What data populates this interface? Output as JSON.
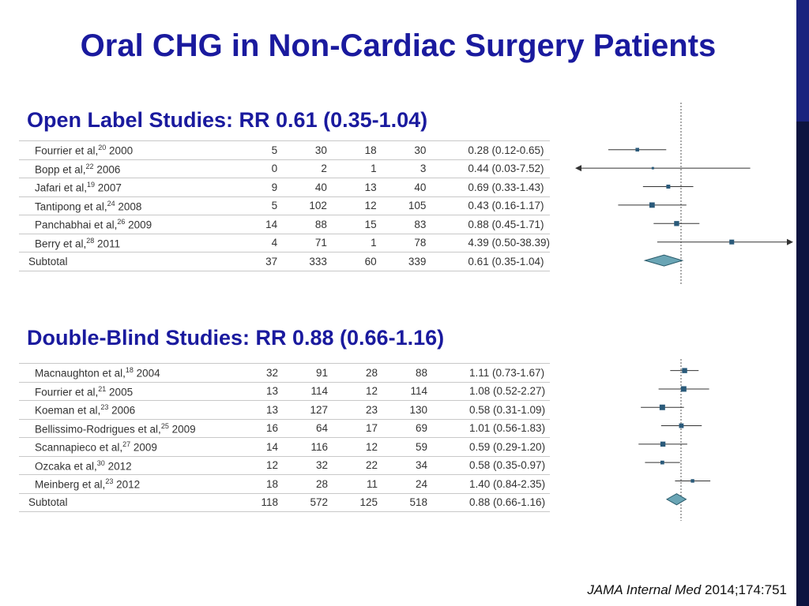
{
  "slide": {
    "title": "Oral CHG in Non-Cardiac Surgery Patients",
    "accent_color": "#1a1a9e"
  },
  "citation": {
    "journal": "JAMA Internal Med",
    "volume": "2014;174:751"
  },
  "chart_data": [
    {
      "type": "table",
      "title": "Open Label Studies: RR 0.61 (0.35-1.04)",
      "reference_line": 1,
      "rows": [
        {
          "study": "Fourrier et al,",
          "ref": "20",
          "year": "2000",
          "events_a": 5,
          "total_a": 30,
          "events_b": 18,
          "total_b": 30,
          "rr_text": "0.28 (0.12-0.65)",
          "rr": 0.28,
          "ci": [
            0.12,
            0.65
          ]
        },
        {
          "study": "Bopp et al,",
          "ref": "22",
          "year": "2006",
          "events_a": 0,
          "total_a": 2,
          "events_b": 1,
          "total_b": 3,
          "rr_text": "0.44 (0.03-7.52)",
          "rr": 0.44,
          "ci": [
            0.03,
            7.52
          ]
        },
        {
          "study": "Jafari et al,",
          "ref": "19",
          "year": "2007",
          "events_a": 9,
          "total_a": 40,
          "events_b": 13,
          "total_b": 40,
          "rr_text": "0.69 (0.33-1.43)",
          "rr": 0.69,
          "ci": [
            0.33,
            1.43
          ]
        },
        {
          "study": "Tantipong et al,",
          "ref": "24",
          "year": "2008",
          "events_a": 5,
          "total_a": 102,
          "events_b": 12,
          "total_b": 105,
          "rr_text": "0.43 (0.16-1.17)",
          "rr": 0.43,
          "ci": [
            0.16,
            1.17
          ]
        },
        {
          "study": "Panchabhai et al,",
          "ref": "26",
          "year": "2009",
          "events_a": 14,
          "total_a": 88,
          "events_b": 15,
          "total_b": 83,
          "rr_text": "0.88 (0.45-1.71)",
          "rr": 0.88,
          "ci": [
            0.45,
            1.71
          ]
        },
        {
          "study": "Berry et al,",
          "ref": "28",
          "year": "2011",
          "events_a": 4,
          "total_a": 71,
          "events_b": 1,
          "total_b": 78,
          "rr_text": "4.39 (0.50-38.39)",
          "rr": 4.39,
          "ci": [
            0.5,
            38.39
          ]
        }
      ],
      "subtotal": {
        "label": "Subtotal",
        "events_a": 37,
        "total_a": 333,
        "events_b": 60,
        "total_b": 339,
        "rr_text": "0.61 (0.35-1.04)",
        "rr": 0.61,
        "ci": [
          0.35,
          1.04
        ]
      }
    },
    {
      "type": "table",
      "title": "Double-Blind Studies:  RR 0.88 (0.66-1.16)",
      "reference_line": 1,
      "rows": [
        {
          "study": "Macnaughton et al,",
          "ref": "18",
          "year": "2004",
          "events_a": 32,
          "total_a": 91,
          "events_b": 28,
          "total_b": 88,
          "rr_text": "1.11 (0.73-1.67)",
          "rr": 1.11,
          "ci": [
            0.73,
            1.67
          ]
        },
        {
          "study": "Fourrier et al,",
          "ref": "21",
          "year": "2005",
          "events_a": 13,
          "total_a": 114,
          "events_b": 12,
          "total_b": 114,
          "rr_text": "1.08 (0.52-2.27)",
          "rr": 1.08,
          "ci": [
            0.52,
            2.27
          ]
        },
        {
          "study": "Koeman et al,",
          "ref": "23",
          "year": "2006",
          "events_a": 13,
          "total_a": 127,
          "events_b": 23,
          "total_b": 130,
          "rr_text": "0.58 (0.31-1.09)",
          "rr": 0.58,
          "ci": [
            0.31,
            1.09
          ]
        },
        {
          "study": "Bellissimo-Rodrigues et al,",
          "ref": "25",
          "year": "2009",
          "events_a": 16,
          "total_a": 64,
          "events_b": 17,
          "total_b": 69,
          "rr_text": "1.01 (0.56-1.83)",
          "rr": 1.01,
          "ci": [
            0.56,
            1.83
          ]
        },
        {
          "study": "Scannapieco et al,",
          "ref": "27",
          "year": "2009",
          "events_a": 14,
          "total_a": 116,
          "events_b": 12,
          "total_b": 59,
          "rr_text": "0.59 (0.29-1.20)",
          "rr": 0.59,
          "ci": [
            0.29,
            1.2
          ]
        },
        {
          "study": "Ozcaka et al,",
          "ref": "30",
          "year": "2012",
          "events_a": 12,
          "total_a": 32,
          "events_b": 22,
          "total_b": 34,
          "rr_text": "0.58 (0.35-0.97)",
          "rr": 0.58,
          "ci": [
            0.35,
            0.97
          ]
        },
        {
          "study": "Meinberg et al,",
          "ref": "23",
          "year": "2012",
          "events_a": 18,
          "total_a": 28,
          "events_b": 11,
          "total_b": 24,
          "rr_text": "1.40 (0.84-2.35)",
          "rr": 1.4,
          "ci": [
            0.84,
            2.35
          ]
        }
      ],
      "subtotal": {
        "label": "Subtotal",
        "events_a": 118,
        "total_a": 572,
        "events_b": 125,
        "total_b": 518,
        "rr_text": "0.88 (0.66-1.16)",
        "rr": 0.88,
        "ci": [
          0.66,
          1.16
        ]
      }
    }
  ]
}
